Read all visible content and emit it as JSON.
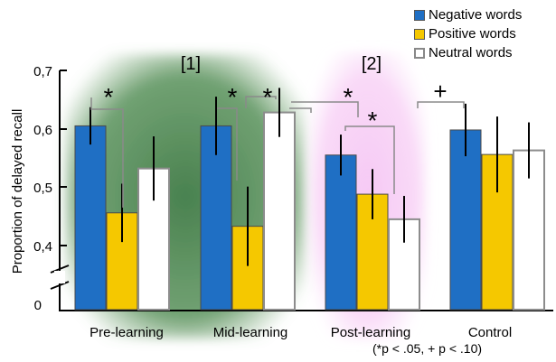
{
  "chart_data": {
    "type": "bar",
    "ylabel": "Proportion  of  delayed  recall",
    "yticks": [
      "0,7",
      "0,6",
      "0,5",
      "0,4",
      "0"
    ],
    "categories": [
      "Pre-learning",
      "Mid-learning",
      "Post-learning",
      "Control"
    ],
    "series": [
      {
        "name": "Negative words",
        "color": "#1f6fc4",
        "values": [
          0.605,
          0.605,
          0.555,
          0.598
        ],
        "errors": [
          0.032,
          0.05,
          0.035,
          0.045
        ]
      },
      {
        "name": "Positive words",
        "color": "#f5c800",
        "values": [
          0.456,
          0.433,
          0.488,
          0.556
        ],
        "errors": [
          0.05,
          0.068,
          0.043,
          0.065
        ]
      },
      {
        "name": "Neutral words",
        "color": "#ffffff",
        "values": [
          0.532,
          0.628,
          0.445,
          0.563
        ],
        "errors": [
          0.055,
          0.042,
          0.04,
          0.048
        ]
      }
    ],
    "ylim": [
      0.35,
      0.7
    ],
    "axis_break": true,
    "group_labels": [
      "[1]",
      "[2]"
    ],
    "annotations": [
      "*",
      "*",
      "*",
      "*",
      "*",
      "+"
    ],
    "footnote": "(*p < .05, + p < .10)",
    "legend_position": "top-right"
  }
}
